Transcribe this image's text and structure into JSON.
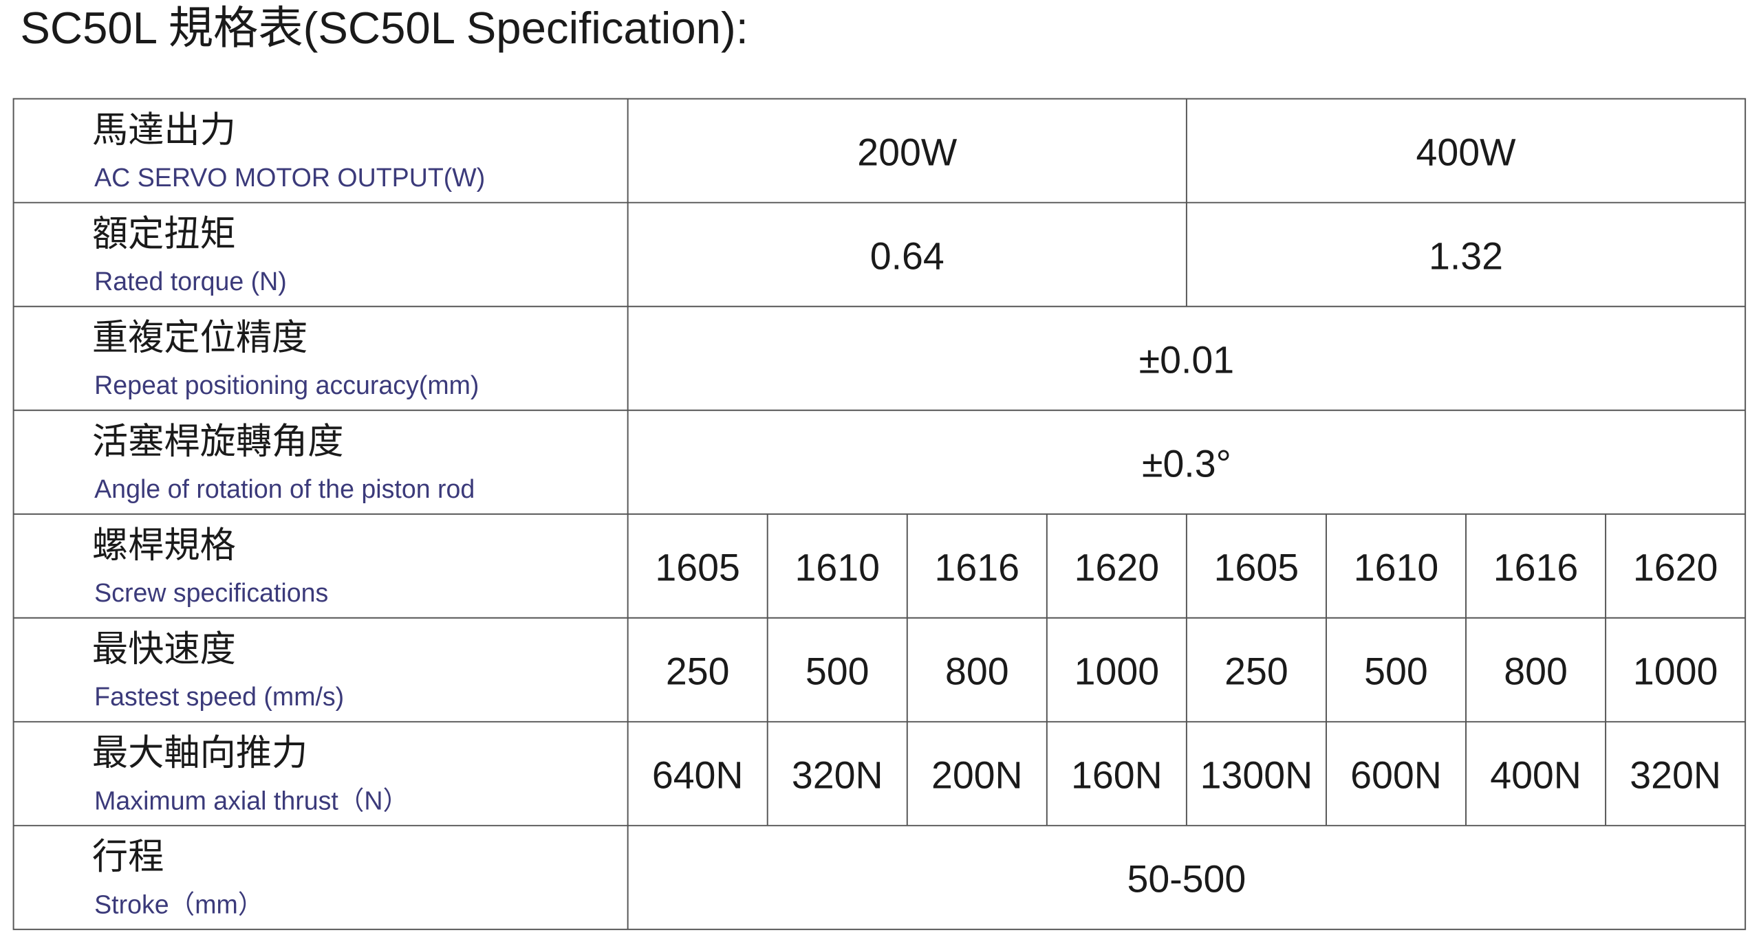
{
  "title": "SC50L 規格表(SC50L Specification):",
  "table": {
    "rows": [
      {
        "label_zh": "馬達出力",
        "label_en": "AC SERVO MOTOR OUTPUT(W)",
        "cells": [
          "200W",
          "400W"
        ]
      },
      {
        "label_zh": "額定扭矩",
        "label_en": "Rated torque  (N)",
        "cells": [
          "0.64",
          "1.32"
        ]
      },
      {
        "label_zh": "重複定位精度",
        "label_en": "Repeat positioning accuracy(mm)",
        "cells": [
          "±0.01"
        ]
      },
      {
        "label_zh": "活塞桿旋轉角度",
        "label_en": "Angle of rotation of the piston rod",
        "cells": [
          "±0.3°"
        ]
      },
      {
        "label_zh": "螺桿規格",
        "label_en": "Screw specifications",
        "cells": [
          "1605",
          "1610",
          "1616",
          "1620",
          "1605",
          "1610",
          "1616",
          "1620"
        ]
      },
      {
        "label_zh": "最快速度",
        "label_en": "Fastest speed (mm/s)",
        "cells": [
          "250",
          "500",
          "800",
          "1000",
          "250",
          "500",
          "800",
          "1000"
        ]
      },
      {
        "label_zh": "最大軸向推力",
        "label_en": "Maximum axial thrust（N）",
        "cells": [
          "640N",
          "320N",
          "200N",
          "160N",
          "1300N",
          "600N",
          "400N",
          "320N"
        ]
      },
      {
        "label_zh": "行程",
        "label_en": "Stroke（mm）",
        "cells": [
          "50-500"
        ]
      }
    ]
  }
}
